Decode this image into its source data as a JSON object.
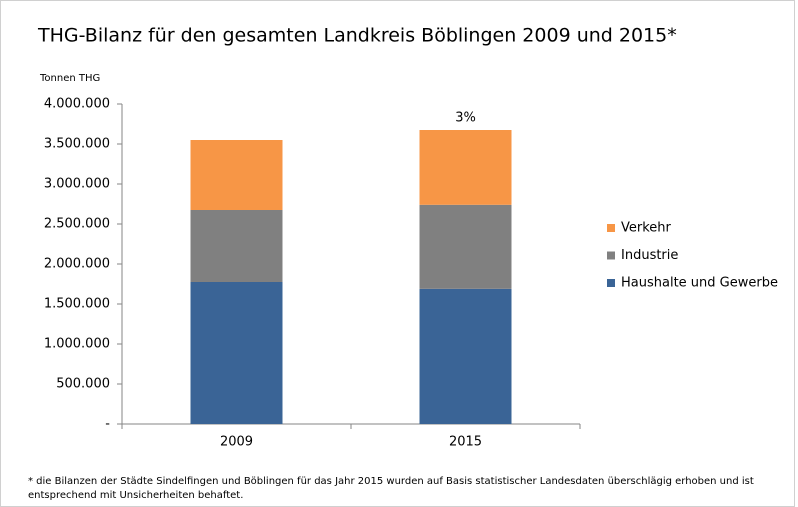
{
  "chart_data": {
    "type": "stacked_bar",
    "title": "THG-Bilanz für den gesamten Landkreis Böblingen 2009 und 2015*",
    "y_label": "Tonnen THG",
    "categories": [
      "2009",
      "2015"
    ],
    "series": [
      {
        "name": "Haushalte und Gewerbe",
        "color": "#3a6496",
        "values": [
          1775000,
          1690000
        ]
      },
      {
        "name": "Industrie",
        "color": "#808080",
        "values": [
          900000,
          1050000
        ]
      },
      {
        "name": "Verkehr",
        "color": "#f79646",
        "values": [
          875000,
          935000
        ]
      }
    ],
    "ylim": [
      0,
      4000000
    ],
    "yticks": [
      {
        "value": 0,
        "label": "-"
      },
      {
        "value": 500000,
        "label": "500.000"
      },
      {
        "value": 1000000,
        "label": "1.000.000"
      },
      {
        "value": 1500000,
        "label": "1.500.000"
      },
      {
        "value": 2000000,
        "label": "2.000.000"
      },
      {
        "value": 2500000,
        "label": "2.500.000"
      },
      {
        "value": 3000000,
        "label": "3.000.000"
      },
      {
        "value": 3500000,
        "label": "3.500.000"
      },
      {
        "value": 4000000,
        "label": "4.000.000"
      }
    ],
    "annotation": "3%",
    "footnote": [
      "* die Bilanzen der Städte Sindelfingen und Böblingen für das Jahr 2015  wurden auf Basis statistischer Landesdaten überschlägig erhoben und ist",
      "entsprechend mit Unsicherheiten behaftet."
    ],
    "legend": "right"
  }
}
